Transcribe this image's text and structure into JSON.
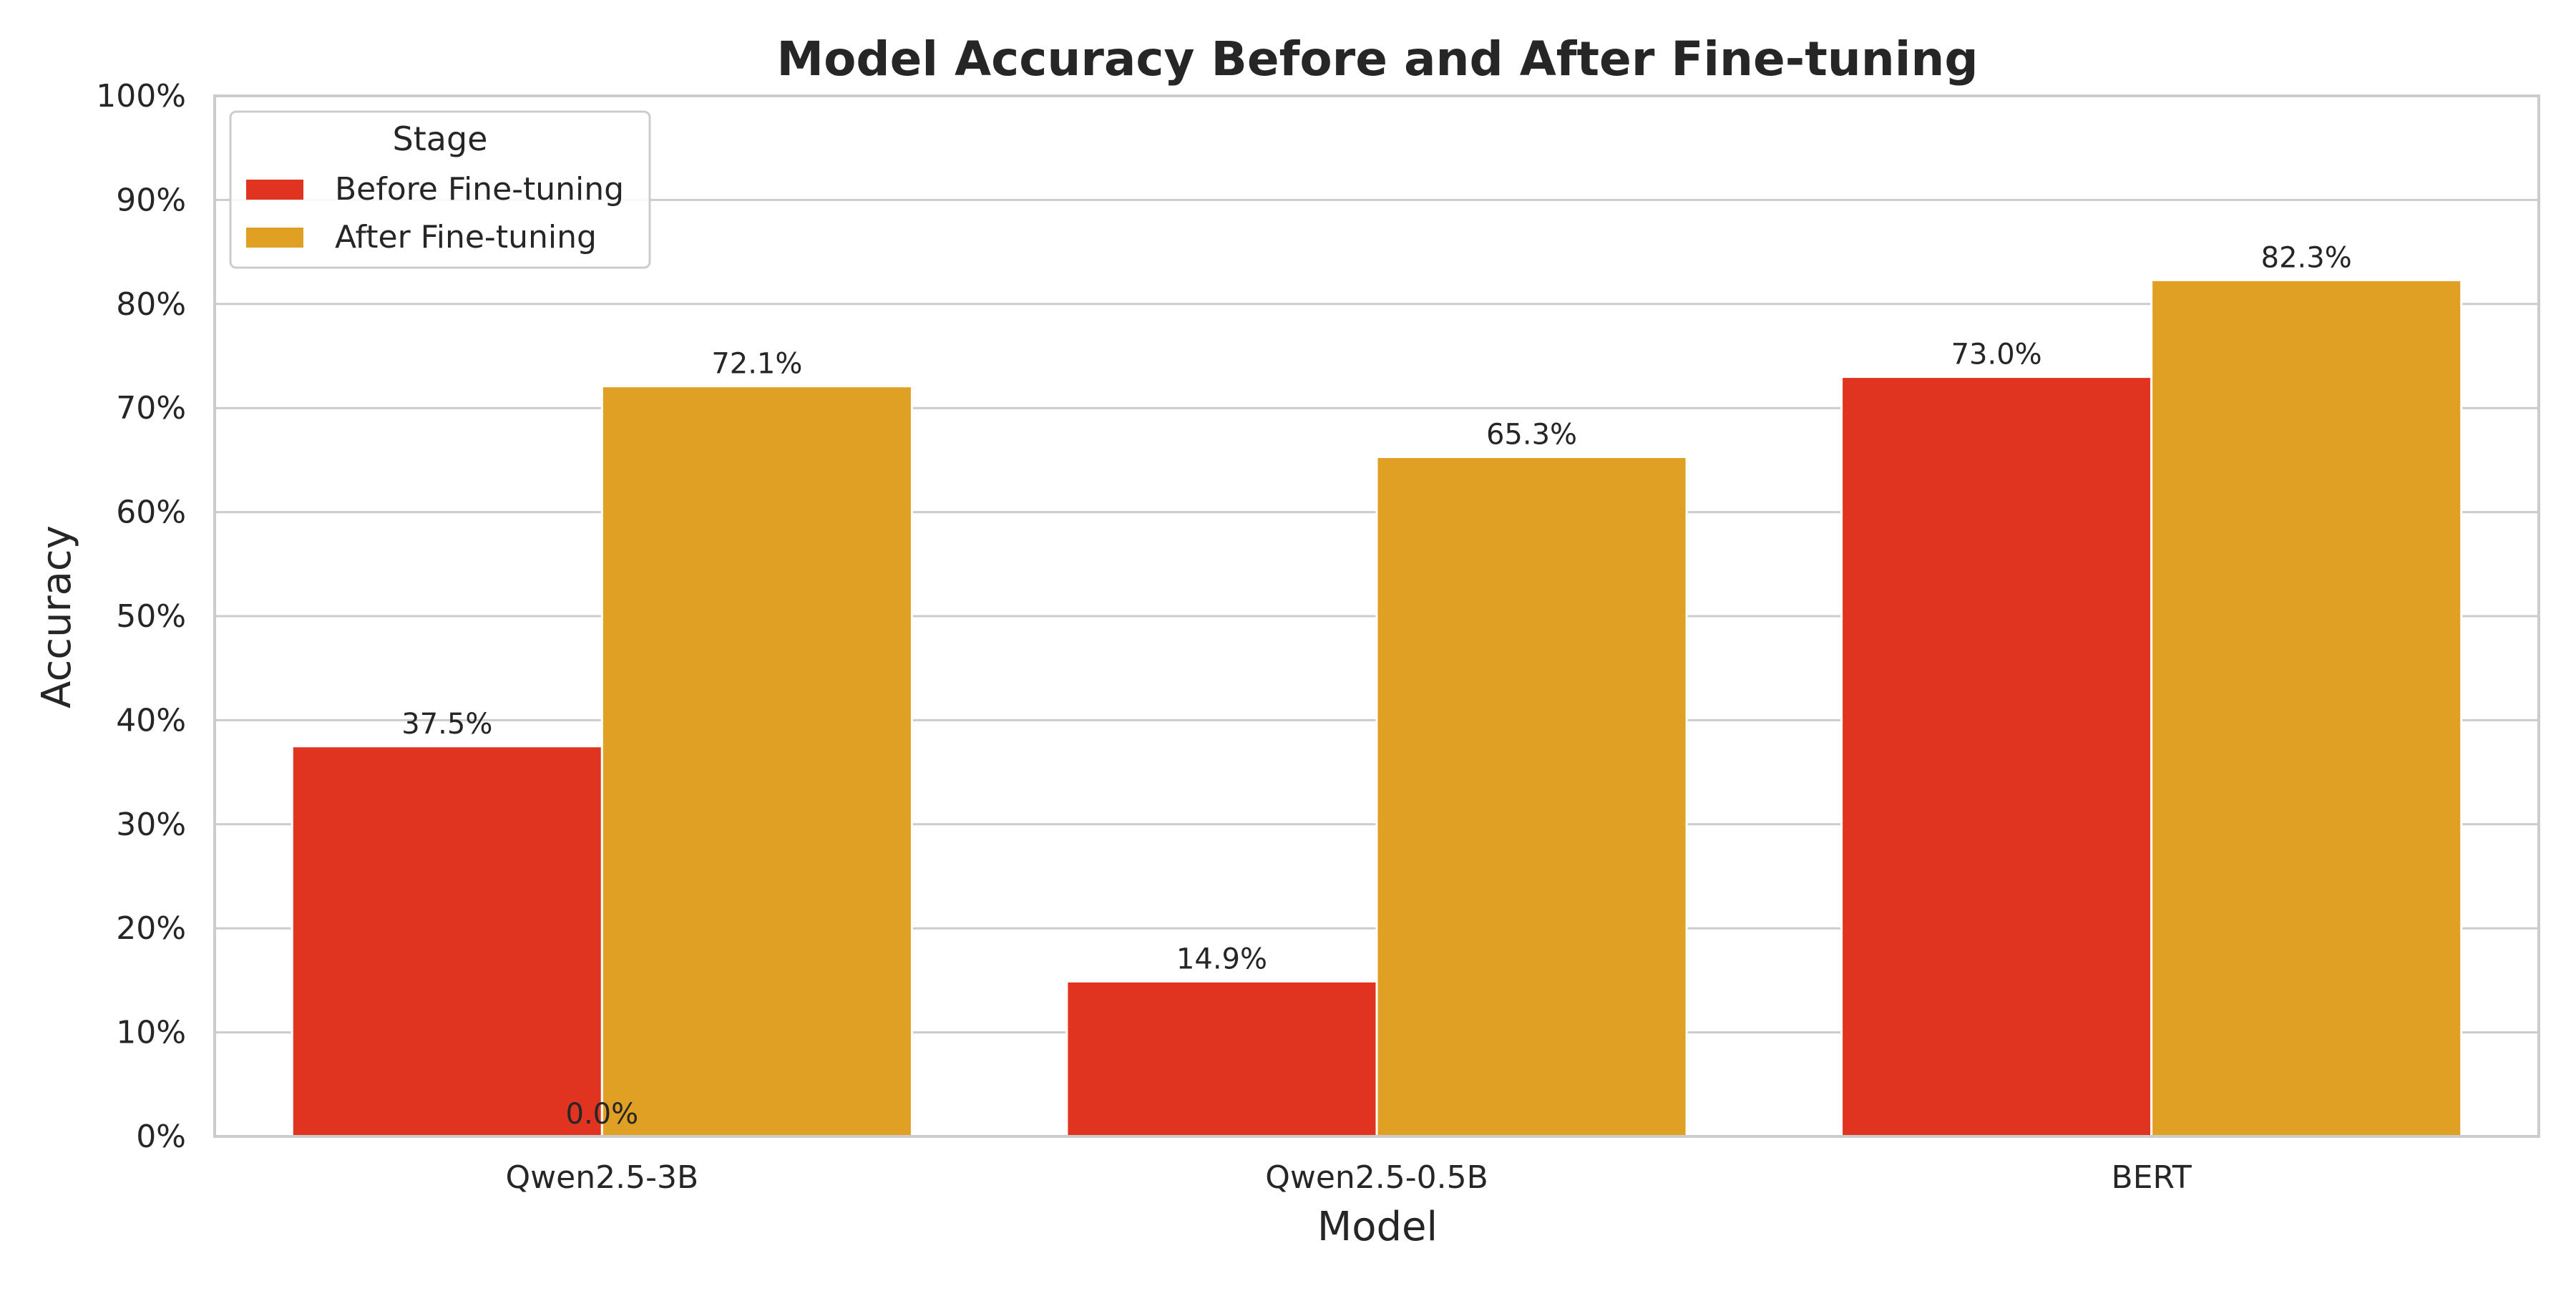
{
  "chart_data": {
    "type": "bar",
    "title": "Model Accuracy Before and After Fine-tuning",
    "xlabel": "Model",
    "ylabel": "Accuracy",
    "categories": [
      "Qwen2.5-3B",
      "Qwen2.5-0.5B",
      "BERT"
    ],
    "series": [
      {
        "name": "Before Fine-tuning",
        "color": "#E03320",
        "values": [
          37.5,
          14.9,
          73.0
        ],
        "labels": [
          "37.5%",
          "14.9%",
          "73.0%"
        ]
      },
      {
        "name": "After Fine-tuning",
        "color": "#DFA024",
        "values": [
          72.1,
          65.3,
          82.3
        ],
        "labels": [
          "72.1%",
          "65.3%",
          "82.3%"
        ]
      }
    ],
    "extra_annotation": "0.0%",
    "ylim": [
      0,
      100
    ],
    "yticks": [
      "0%",
      "10%",
      "20%",
      "30%",
      "40%",
      "50%",
      "60%",
      "70%",
      "80%",
      "90%",
      "100%"
    ],
    "grid": true,
    "legend": {
      "title": "Stage",
      "placement": "top-left"
    }
  }
}
